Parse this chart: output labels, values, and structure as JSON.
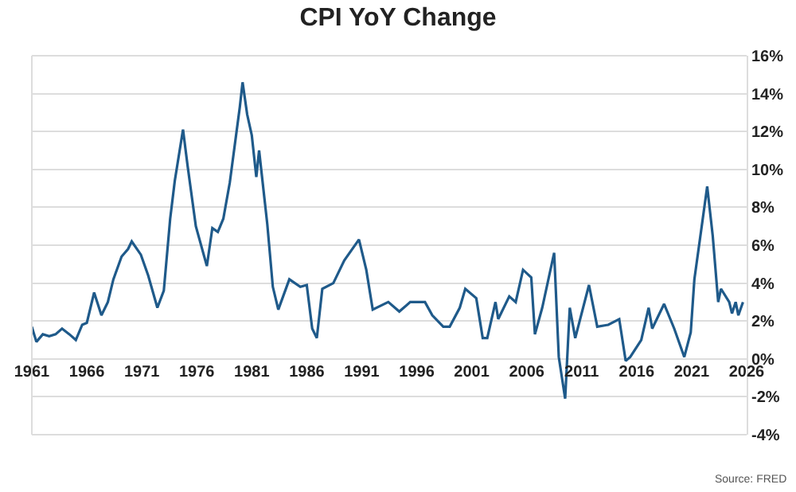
{
  "chart_data": {
    "type": "line",
    "title": "CPI YoY Change",
    "x": [
      "1961-01",
      "1961-06",
      "1962-01",
      "1962-08",
      "1963-03",
      "1963-10",
      "1964-06",
      "1965-01",
      "1965-08",
      "1966-01",
      "1966-09",
      "1967-05",
      "1967-12",
      "1968-06",
      "1969-03",
      "1969-10",
      "1970-02",
      "1970-12",
      "1971-08",
      "1972-06",
      "1973-01",
      "1973-08",
      "1974-01",
      "1974-10",
      "1975-03",
      "1975-12",
      "1976-12",
      "1977-06",
      "1977-12",
      "1978-06",
      "1979-01",
      "1979-12",
      "1980-03",
      "1980-08",
      "1981-01",
      "1981-06",
      "1981-09",
      "1982-06",
      "1982-12",
      "1983-06",
      "1984-06",
      "1985-06",
      "1986-01",
      "1986-07",
      "1986-12",
      "1987-06",
      "1988-06",
      "1989-06",
      "1990-10",
      "1991-06",
      "1992-01",
      "1993-06",
      "1994-06",
      "1995-06",
      "1996-10",
      "1997-06",
      "1998-06",
      "1999-01",
      "1999-12",
      "2000-06",
      "2001-06",
      "2002-01",
      "2002-06",
      "2003-03",
      "2003-06",
      "2004-06",
      "2005-01",
      "2005-09",
      "2006-06",
      "2006-10",
      "2007-06",
      "2008-07",
      "2008-12",
      "2009-07",
      "2009-12",
      "2010-06",
      "2011-09",
      "2012-06",
      "2013-06",
      "2014-06",
      "2015-01",
      "2015-06",
      "2016-06",
      "2017-02",
      "2017-06",
      "2018-07",
      "2019-06",
      "2020-05",
      "2020-12",
      "2021-04",
      "2021-12",
      "2022-06",
      "2022-12",
      "2023-06",
      "2023-09",
      "2024-06",
      "2024-09",
      "2025-01",
      "2025-04",
      "2025-09"
    ],
    "series": [
      {
        "color": "#1f5a8a",
        "values": [
          1.7,
          0.9,
          1.3,
          1.2,
          1.3,
          1.6,
          1.3,
          1.0,
          1.8,
          1.9,
          3.5,
          2.3,
          3.0,
          4.2,
          5.4,
          5.8,
          6.2,
          5.5,
          4.4,
          2.7,
          3.6,
          7.4,
          9.4,
          12.1,
          10.2,
          7.0,
          4.9,
          6.9,
          6.7,
          7.4,
          9.3,
          13.3,
          14.6,
          12.9,
          11.8,
          9.6,
          11.0,
          7.1,
          3.8,
          2.6,
          4.2,
          3.8,
          3.9,
          1.6,
          1.1,
          3.7,
          4.0,
          5.2,
          6.3,
          4.7,
          2.6,
          3.0,
          2.5,
          3.0,
          3.0,
          2.3,
          1.7,
          1.7,
          2.7,
          3.7,
          3.2,
          1.1,
          1.1,
          3.0,
          2.1,
          3.3,
          3.0,
          4.7,
          4.3,
          1.3,
          2.7,
          5.6,
          0.1,
          -2.1,
          2.7,
          1.1,
          3.9,
          1.7,
          1.8,
          2.1,
          -0.1,
          0.1,
          1.0,
          2.7,
          1.6,
          2.9,
          1.6,
          0.1,
          1.4,
          4.2,
          7.0,
          9.1,
          6.5,
          3.0,
          3.7,
          3.0,
          2.4,
          3.0,
          2.3,
          3.0
        ]
      }
    ],
    "xlim": [
      "1961",
      "2026"
    ],
    "xticks": [
      "1961",
      "1966",
      "1971",
      "1976",
      "1981",
      "1986",
      "1991",
      "1996",
      "2001",
      "2006",
      "2011",
      "2016",
      "2021",
      "2026"
    ],
    "ylim": [
      -4,
      16
    ],
    "yticks": [
      {
        "value": -4,
        "label": "-4%"
      },
      {
        "value": -2,
        "label": "-2%"
      },
      {
        "value": 0,
        "label": "0%"
      },
      {
        "value": 2,
        "label": "2%"
      },
      {
        "value": 4,
        "label": "4%"
      },
      {
        "value": 6,
        "label": "6%"
      },
      {
        "value": 8,
        "label": "8%"
      },
      {
        "value": 10,
        "label": "10%"
      },
      {
        "value": 12,
        "label": "12%"
      },
      {
        "value": 14,
        "label": "14%"
      },
      {
        "value": 16,
        "label": "16%"
      }
    ],
    "grid": "y",
    "marker": "none",
    "line_style": "solid",
    "annotations": [
      "Source: FRED"
    ]
  }
}
